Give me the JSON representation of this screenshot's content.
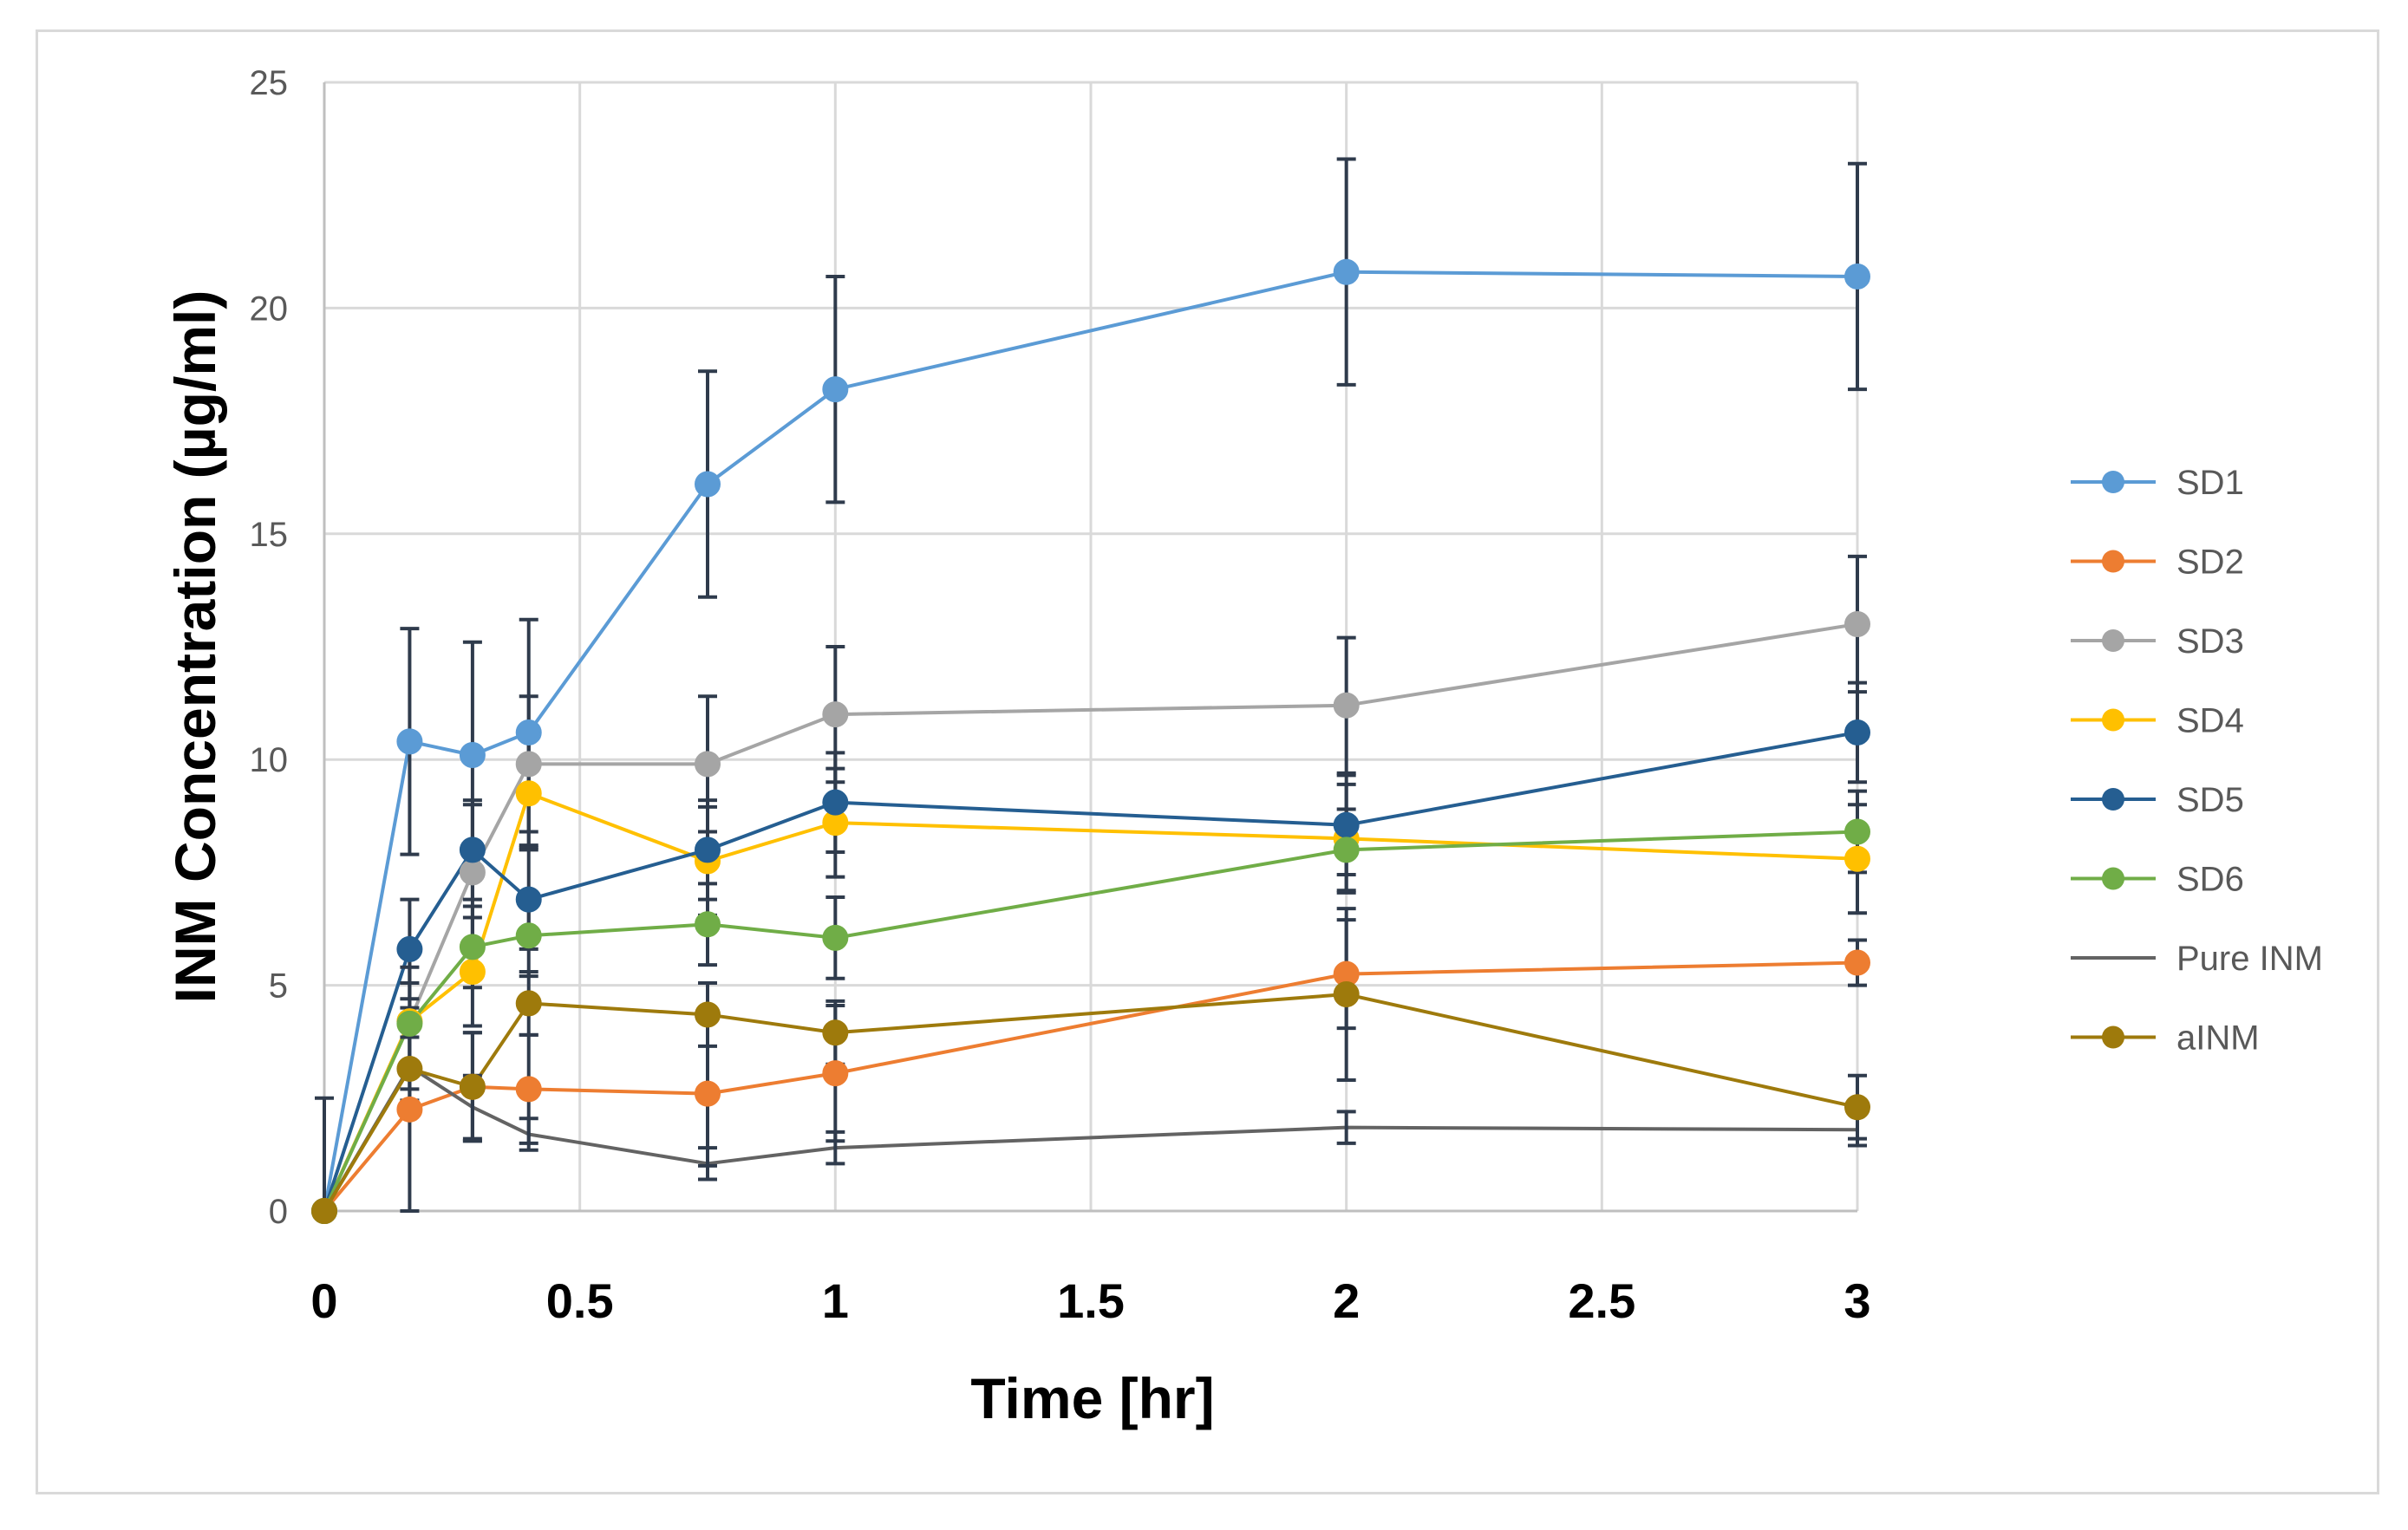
{
  "chart_data": {
    "type": "line",
    "title": "",
    "xlabel": "Time [hr]",
    "ylabel": "INM Concentration (µg/ml)",
    "xlim": [
      0,
      3
    ],
    "ylim": [
      0,
      25
    ],
    "xticks": [
      "0",
      "0.5",
      "1",
      "1.5",
      "2",
      "2.5",
      "3"
    ],
    "yticks": [
      "0",
      "5",
      "10",
      "15",
      "20",
      "25"
    ],
    "x": [
      0,
      0.167,
      0.29,
      0.4,
      0.75,
      1,
      2,
      3
    ],
    "grid": true,
    "legend_position": "right",
    "series": [
      {
        "name": "SD1",
        "color": "#5B9BD5",
        "marker": true,
        "values": [
          0,
          10.4,
          10.1,
          10.6,
          16.1,
          18.2,
          20.8,
          20.7
        ],
        "errors": [
          0,
          2.5,
          2.5,
          2.5,
          2.5,
          2.5,
          2.5,
          2.5
        ]
      },
      {
        "name": "SD2",
        "color": "#ED7D31",
        "marker": true,
        "values": [
          0,
          2.25,
          2.75,
          2.7,
          2.6,
          3.05,
          5.25,
          5.5
        ],
        "errors": [
          0,
          2.25,
          1.2,
          1.2,
          1.6,
          1.5,
          1.2,
          0.5
        ]
      },
      {
        "name": "SD3",
        "color": "#A5A5A5",
        "marker": true,
        "values": [
          0,
          4.2,
          7.5,
          9.9,
          9.9,
          11.0,
          11.2,
          13.0
        ],
        "errors": [
          0,
          1.5,
          1.5,
          1.5,
          1.5,
          1.5,
          1.5,
          1.5
        ]
      },
      {
        "name": "SD4",
        "color": "#FFC000",
        "marker": true,
        "values": [
          0,
          4.2,
          5.3,
          9.25,
          7.75,
          8.6,
          8.25,
          7.8
        ],
        "errors": [
          0,
          1.2,
          1.2,
          1.2,
          1.2,
          1.2,
          1.2,
          1.2
        ]
      },
      {
        "name": "SD5",
        "color": "#255E91",
        "marker": true,
        "values": [
          0,
          5.8,
          8.0,
          6.9,
          8.0,
          9.05,
          8.55,
          10.6
        ],
        "errors": [
          0,
          1.1,
          1.1,
          1.1,
          1.1,
          1.1,
          1.1,
          1.1
        ]
      },
      {
        "name": "SD6",
        "color": "#70AD47",
        "marker": true,
        "values": [
          0,
          4.15,
          5.85,
          6.1,
          6.35,
          6.05,
          8.0,
          8.4
        ],
        "errors": [
          0,
          0.9,
          0.9,
          0.9,
          0.9,
          0.9,
          0.9,
          0.9
        ]
      },
      {
        "name": "Pure INM",
        "color": "#636363",
        "marker": false,
        "values": [
          0,
          3.2,
          2.3,
          1.7,
          1.05,
          1.4,
          1.85,
          1.8
        ],
        "errors": [
          2.5,
          0.9,
          0.7,
          0.35,
          0.35,
          0.35,
          0.35,
          0.35
        ]
      },
      {
        "name": "aINM",
        "color": "#9E7A0C",
        "marker": true,
        "values": [
          0,
          3.15,
          2.75,
          4.6,
          4.35,
          3.95,
          4.8,
          2.3
        ],
        "errors": [
          0,
          0.7,
          1.2,
          0.7,
          0.7,
          0.7,
          1.9,
          0.7
        ]
      }
    ]
  }
}
